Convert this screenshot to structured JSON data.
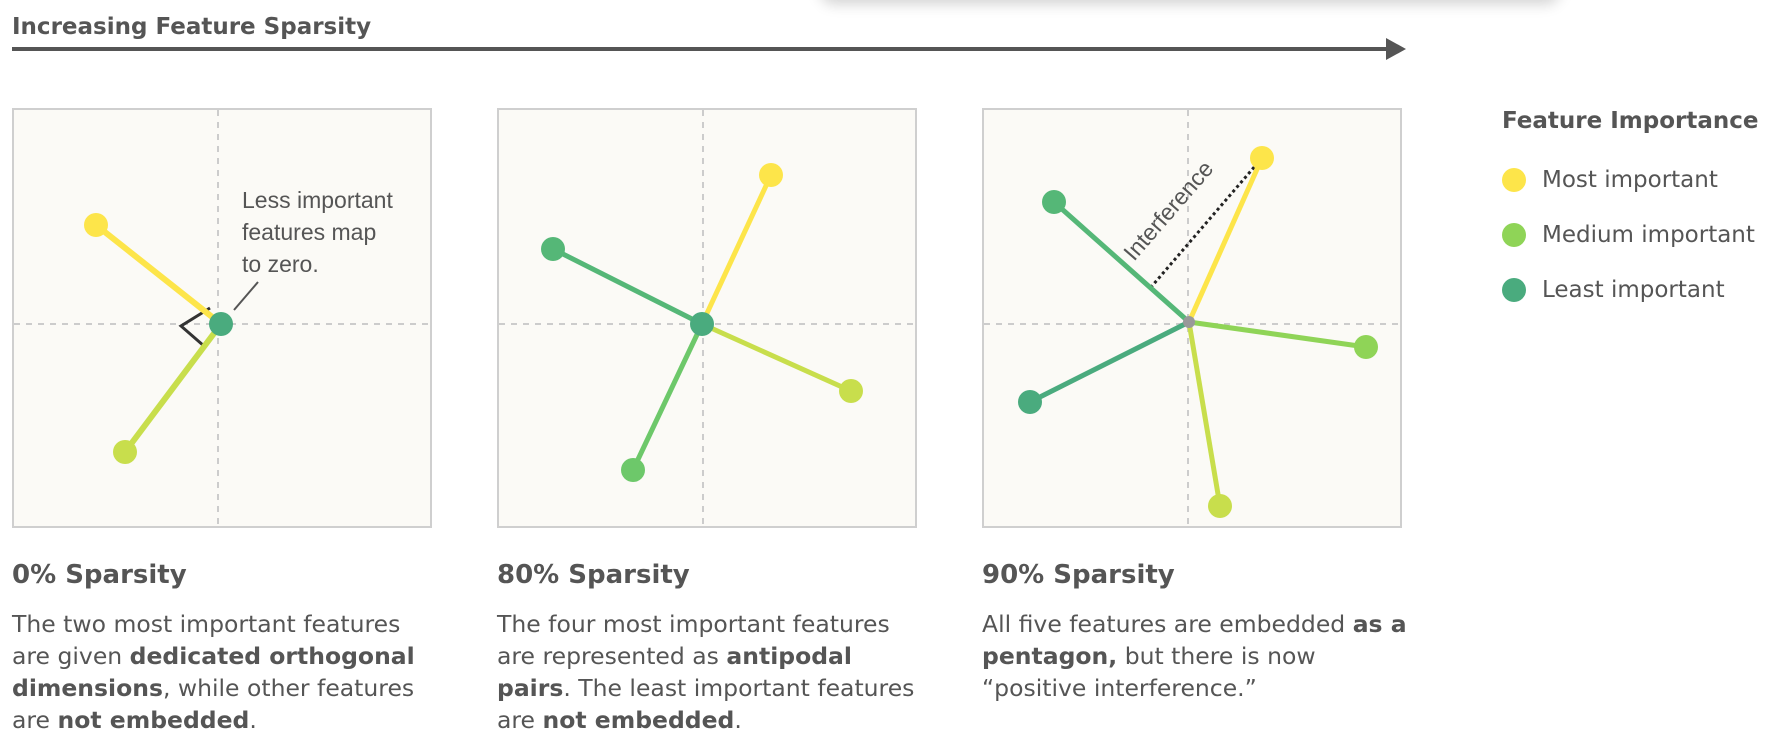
{
  "header": {
    "axis_title": "Increasing Feature Sparsity"
  },
  "colors": {
    "most": "#fde54a",
    "medium": "#c8de4c",
    "medium_green": "#6dc86a",
    "least": "#4aab7e",
    "axis": "#555555",
    "panel_bg": "#fbfaf6"
  },
  "panels": [
    {
      "title": "0% Sparsity",
      "annotation": [
        "Less important",
        "features map",
        "to zero."
      ],
      "desc": {
        "p1": "The two most important features are given ",
        "b1": "dedicated orthogonal dimensions",
        "p2": ", while other features are ",
        "b2": "not embedded",
        "p3": "."
      }
    },
    {
      "title": "80% Sparsity",
      "desc": {
        "p1": "The four most important features are represented as ",
        "b1": "antipodal pairs",
        "p2": ". The least important features are ",
        "b2": "not embedded",
        "p3": "."
      }
    },
    {
      "title": "90% Sparsity",
      "interference_label": "Interference",
      "desc": {
        "p1": "All five features are embedded ",
        "b1": "as a pentagon,",
        "p2": " but there is now “positive interference.”"
      }
    }
  ],
  "legend": {
    "title": "Feature Importance",
    "items": [
      {
        "label": "Most important",
        "color": "#fde54a"
      },
      {
        "label": "Medium important",
        "color": "#8fd457"
      },
      {
        "label": "Least important",
        "color": "#4aab7e"
      }
    ]
  }
}
